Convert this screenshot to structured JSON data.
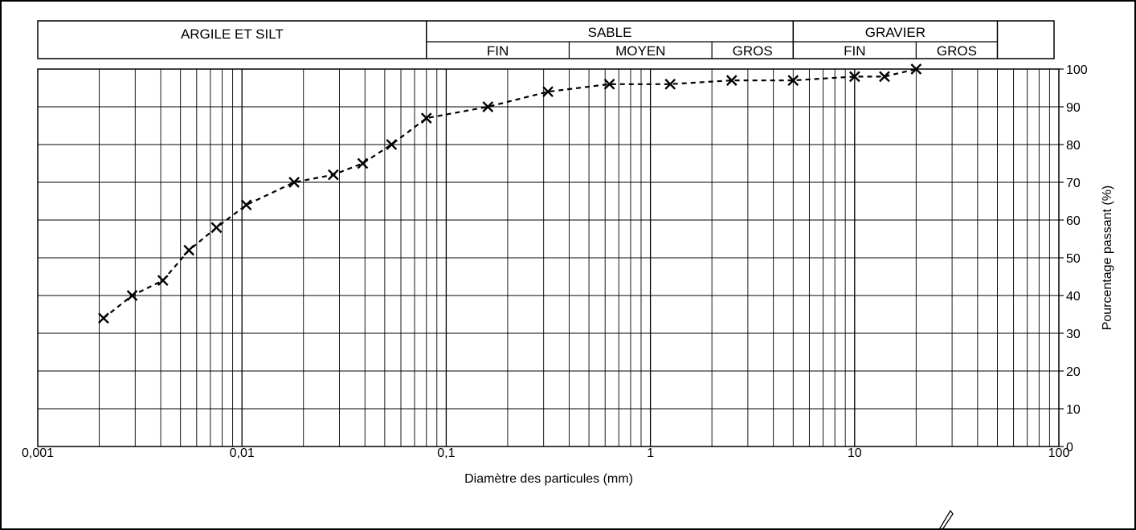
{
  "chart_data": {
    "type": "scatter",
    "x_scale": "log",
    "xlabel": "Diamètre des particules (mm)",
    "ylabel": "Pourcentage passant (%)",
    "xlim": [
      0.001,
      100
    ],
    "ylim": [
      0,
      100
    ],
    "grid": true,
    "x_tick_labels": [
      "0,001",
      "0,01",
      "0,1",
      "1",
      "10",
      "100"
    ],
    "y_tick_labels": [
      "0",
      "10",
      "20",
      "30",
      "40",
      "50",
      "60",
      "70",
      "80",
      "90",
      "100"
    ],
    "line_style": "dashed",
    "marker": "x",
    "series": [
      {
        "x": [
          0.0021,
          0.0029,
          0.0041,
          0.0055,
          0.0075,
          0.0105,
          0.018,
          0.028,
          0.039,
          0.054,
          0.08,
          0.16,
          0.315,
          0.63,
          1.25,
          2.5,
          5,
          10,
          14,
          20
        ],
        "y": [
          34,
          40,
          44,
          52,
          58,
          64,
          70,
          72,
          75,
          80,
          87,
          90,
          94,
          96,
          96,
          97,
          97,
          98,
          98,
          100
        ]
      }
    ],
    "classification": {
      "argile_silt": "ARGILE ET SILT",
      "sable": {
        "label": "SABLE",
        "fin": "FIN",
        "moyen": "MOYEN",
        "gros": "GROS",
        "limits_mm": [
          0.08,
          0.4,
          2,
          5
        ]
      },
      "gravier": {
        "label": "GRAVIER",
        "fin": "FIN",
        "gros": "GROS",
        "limits_mm": [
          5,
          20,
          50
        ]
      }
    }
  }
}
